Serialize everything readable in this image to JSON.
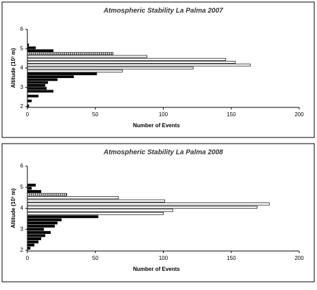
{
  "chart_data": [
    {
      "type": "barh",
      "title": "Atmospheric Stability La Palma 2007",
      "xlabel": "Number of Events",
      "ylabel": "Altitude (10³ m)",
      "altitudes": [
        2.05,
        2.3,
        2.55,
        2.8,
        2.95,
        3.1,
        3.25,
        3.4,
        3.55,
        3.7,
        3.85,
        4.0,
        4.15,
        4.3,
        4.45,
        4.6,
        4.75,
        4.9,
        5.05,
        5.2
      ],
      "values": [
        1,
        3,
        8,
        19,
        14,
        13,
        15,
        22,
        34,
        51,
        70,
        122,
        164,
        153,
        146,
        88,
        63,
        19,
        6,
        1
      ],
      "fills": [
        "black",
        "black",
        "black",
        "black",
        "black",
        "black",
        "black",
        "black",
        "black",
        "black",
        "white",
        "white",
        "white",
        "white",
        "white",
        "white",
        "hatched",
        "black",
        "black",
        "black"
      ],
      "xlim": [
        0,
        200
      ],
      "xticks": [
        0,
        50,
        100,
        150,
        200
      ],
      "ylim": [
        2,
        6
      ],
      "yticks": [
        2,
        3,
        4,
        5,
        6
      ]
    },
    {
      "type": "barh",
      "title": "Atmospheric Stability La Palma 2008",
      "xlabel": "Number of Events",
      "ylabel": "Altitude (10³ m)",
      "altitudes": [
        2.1,
        2.25,
        2.4,
        2.55,
        2.7,
        2.85,
        3.0,
        3.15,
        3.3,
        3.45,
        3.6,
        3.75,
        3.9,
        4.05,
        4.2,
        4.35,
        4.5,
        4.65,
        4.8,
        4.95,
        5.1
      ],
      "values": [
        2,
        5,
        8,
        10,
        13,
        17,
        12,
        20,
        22,
        25,
        52,
        100,
        107,
        169,
        178,
        101,
        67,
        29,
        10,
        3,
        6
      ],
      "fills": [
        "black",
        "black",
        "black",
        "black",
        "black",
        "black",
        "black",
        "black",
        "black",
        "black",
        "black",
        "white",
        "white",
        "white",
        "white",
        "white",
        "white",
        "hatched",
        "black",
        "black",
        "black"
      ],
      "xlim": [
        0,
        200
      ],
      "xticks": [
        0,
        50,
        100,
        150,
        200
      ],
      "ylim": [
        2,
        6
      ],
      "yticks": [
        2,
        3,
        4,
        5,
        6
      ]
    }
  ]
}
